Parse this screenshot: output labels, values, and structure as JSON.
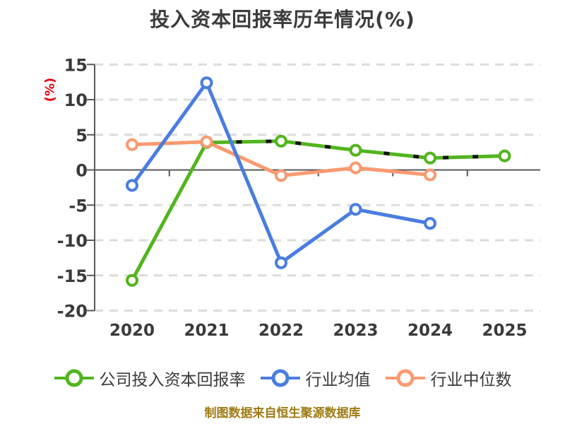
{
  "title": "投入资本回报率历年情况(%)",
  "y_axis_label": "(%)",
  "caption": "制图数据来自恒生聚源数据库",
  "colors": {
    "title": "#3c3c3e",
    "tick_label": "#3a3a3c",
    "axis": "#58585a",
    "grid": "#dcdcdc",
    "y_label_red": "#e8000d",
    "caption_gold": "#9d7a12",
    "company": "#52b51e",
    "industry_mean": "#4a7de0",
    "industry_median": "#f99a70",
    "overlay_dash": "#111111",
    "marker_fill": "#ffffff"
  },
  "chart_data": {
    "type": "line",
    "title": "投入资本回报率历年情况(%)",
    "xlabel": "",
    "ylabel": "(%)",
    "categories": [
      "2020",
      "2021",
      "2022",
      "2023",
      "2024",
      "2025"
    ],
    "series": [
      {
        "name": "公司投入资本回报率",
        "color_key": "company",
        "values": [
          -15.7,
          3.9,
          4.1,
          2.8,
          1.7,
          2.0
        ]
      },
      {
        "name": "行业均值",
        "color_key": "industry_mean",
        "values": [
          -2.2,
          12.4,
          -13.2,
          -5.6,
          -7.6,
          null
        ]
      },
      {
        "name": "行业中位数",
        "color_key": "industry_median",
        "values": [
          3.6,
          4.0,
          -0.8,
          0.3,
          -0.7,
          null
        ]
      }
    ],
    "overlay_series": {
      "name": "公司投入资本回报率-黑色虚线描边",
      "color_key": "overlay_dash",
      "style": "dashed",
      "values": [
        null,
        3.9,
        4.1,
        2.8,
        1.7,
        2.0
      ]
    },
    "ylim": [
      -20,
      15
    ],
    "yticks": [
      15,
      10,
      5,
      0,
      -5,
      -10,
      -15,
      -20
    ],
    "grid": "dashed-horizontal",
    "legend_position": "bottom"
  }
}
